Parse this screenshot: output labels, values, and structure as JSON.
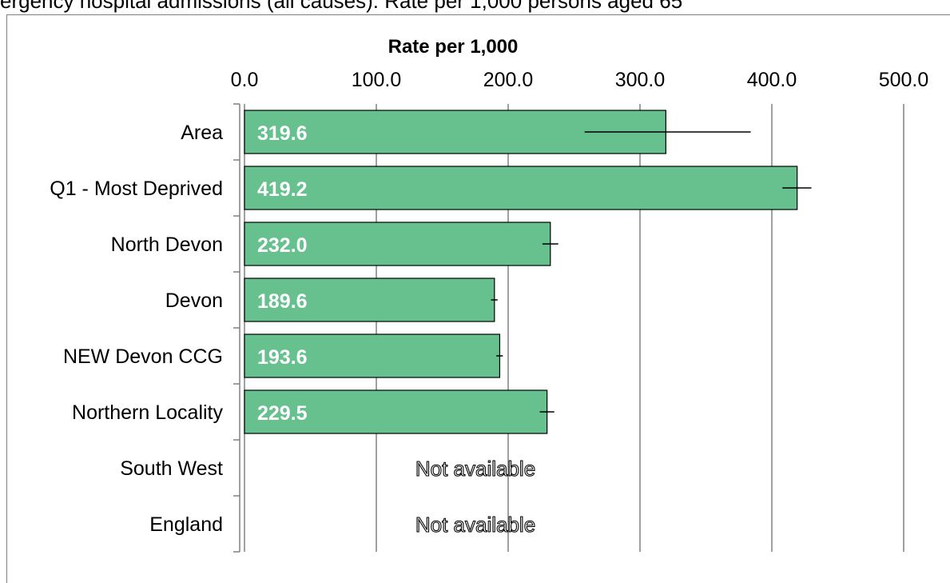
{
  "caption": "ergency hospital admissions (all causes): Rate per 1,000 persons aged 65",
  "chart_data": {
    "type": "bar",
    "orientation": "horizontal",
    "title": "Rate per 1,000",
    "categories": [
      "Area",
      "Q1 - Most Deprived",
      "North Devon",
      "Devon",
      "NEW Devon CCG",
      "Northern Locality",
      "South West",
      "England"
    ],
    "values": [
      319.6,
      419.2,
      232.0,
      189.6,
      193.6,
      229.5,
      null,
      null
    ],
    "value_labels": [
      "319.6",
      "419.2",
      "232.0",
      "189.6",
      "193.6",
      "229.5",
      "",
      ""
    ],
    "error_bars": [
      [
        258,
        384
      ],
      [
        408,
        430
      ],
      [
        226,
        238
      ],
      [
        187,
        192
      ],
      [
        191,
        196
      ],
      [
        224,
        235
      ],
      null,
      null
    ],
    "na_label": "Not available",
    "xlim": [
      0,
      500
    ],
    "x_ticks": [
      "0.0",
      "100.0",
      "200.0",
      "300.0",
      "400.0",
      "500.0"
    ],
    "x_tick_values": [
      0,
      100,
      200,
      300,
      400,
      500
    ],
    "grid": true,
    "colors": {
      "bar": "#67c18f",
      "bar_border": "#000000",
      "grid": "#808080",
      "label": "#ffffff"
    }
  }
}
